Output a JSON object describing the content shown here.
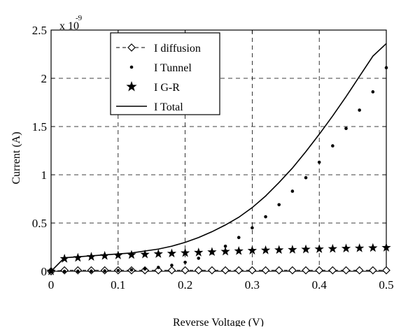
{
  "chart_data": {
    "type": "line",
    "title": "",
    "xlabel": "Reverse Voltage (V)",
    "ylabel": "Current (A)",
    "scale_base": "x 10",
    "scale_exponent": "-9",
    "xlim": [
      0,
      0.5
    ],
    "ylim": [
      0,
      2.5
    ],
    "xticks": [
      0,
      0.1,
      0.2,
      0.3,
      0.4,
      0.5
    ],
    "xtick_labels": [
      "0",
      "0.1",
      "0.2",
      "0.3",
      "0.4",
      "0.5"
    ],
    "yticks": [
      0,
      0.5,
      1,
      1.5,
      2,
      2.5
    ],
    "ytick_labels": [
      "0",
      "0.5",
      "1",
      "1.5",
      "2",
      "2.5"
    ],
    "grid": true,
    "legend_position": "top-left",
    "x": [
      0,
      0.02,
      0.04,
      0.06,
      0.08,
      0.1,
      0.12,
      0.14,
      0.16,
      0.18,
      0.2,
      0.22,
      0.24,
      0.26,
      0.28,
      0.3,
      0.32,
      0.34,
      0.36,
      0.38,
      0.4,
      0.42,
      0.44,
      0.46,
      0.48,
      0.5
    ],
    "series": [
      {
        "name": "I diffusion",
        "style": "dash-diamond",
        "values": [
          0,
          0.01,
          0.01,
          0.01,
          0.01,
          0.01,
          0.01,
          0.01,
          0.01,
          0.01,
          0.01,
          0.01,
          0.01,
          0.01,
          0.01,
          0.01,
          0.01,
          0.01,
          0.01,
          0.01,
          0.01,
          0.01,
          0.01,
          0.01,
          0.01,
          0.01
        ]
      },
      {
        "name": "I Tunnel",
        "style": "dot",
        "values": [
          0,
          0,
          0.001,
          0.002,
          0.004,
          0.008,
          0.014,
          0.024,
          0.04,
          0.062,
          0.093,
          0.135,
          0.19,
          0.26,
          0.35,
          0.45,
          0.565,
          0.69,
          0.83,
          0.97,
          1.13,
          1.3,
          1.48,
          1.67,
          1.86,
          2.11
        ]
      },
      {
        "name": "I G-R",
        "style": "star",
        "values": [
          0,
          0.13,
          0.14,
          0.15,
          0.16,
          0.165,
          0.17,
          0.175,
          0.18,
          0.185,
          0.19,
          0.195,
          0.2,
          0.205,
          0.21,
          0.215,
          0.218,
          0.221,
          0.224,
          0.227,
          0.23,
          0.233,
          0.236,
          0.239,
          0.242,
          0.245
        ]
      },
      {
        "name": "I Total",
        "style": "solid",
        "values": [
          0,
          0.14,
          0.15,
          0.16,
          0.17,
          0.18,
          0.19,
          0.21,
          0.23,
          0.26,
          0.3,
          0.35,
          0.41,
          0.48,
          0.56,
          0.66,
          0.78,
          0.92,
          1.07,
          1.24,
          1.42,
          1.61,
          1.81,
          2.02,
          2.23,
          2.36
        ]
      }
    ]
  }
}
